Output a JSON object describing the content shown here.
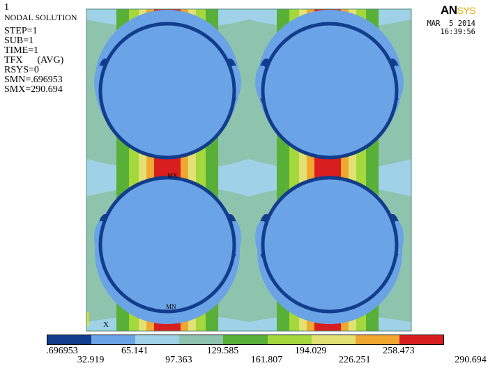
{
  "window": {
    "number": "1"
  },
  "info": {
    "title": "NODAL SOLUTION",
    "lines": [
      "STEP=1",
      "SUB=1",
      "TIME=1",
      "TFX      (AVG)",
      "RSYS=0",
      "SMN=.696953",
      "SMX=290.694"
    ]
  },
  "logo": {
    "main": "AN",
    "accent": "SYS"
  },
  "timestamp": {
    "date": "MAR  5 2014",
    "time": "16:39:56"
  },
  "plot": {
    "max_marker": "MX",
    "min_marker": "MN",
    "axis_label": "X"
  },
  "legend": {
    "colors": [
      "#123d8c",
      "#6aa3e6",
      "#9fd2e6",
      "#8ec4ae",
      "#58b038",
      "#a4d83c",
      "#e2e274",
      "#f0a830",
      "#d81e1e"
    ],
    "top_labels": [
      ".696953",
      "65.141",
      "129.585",
      "194.029",
      "258.473"
    ],
    "bottom_labels": [
      "32.919",
      "97.363",
      "161.807",
      "226.251",
      "290.694"
    ]
  }
}
